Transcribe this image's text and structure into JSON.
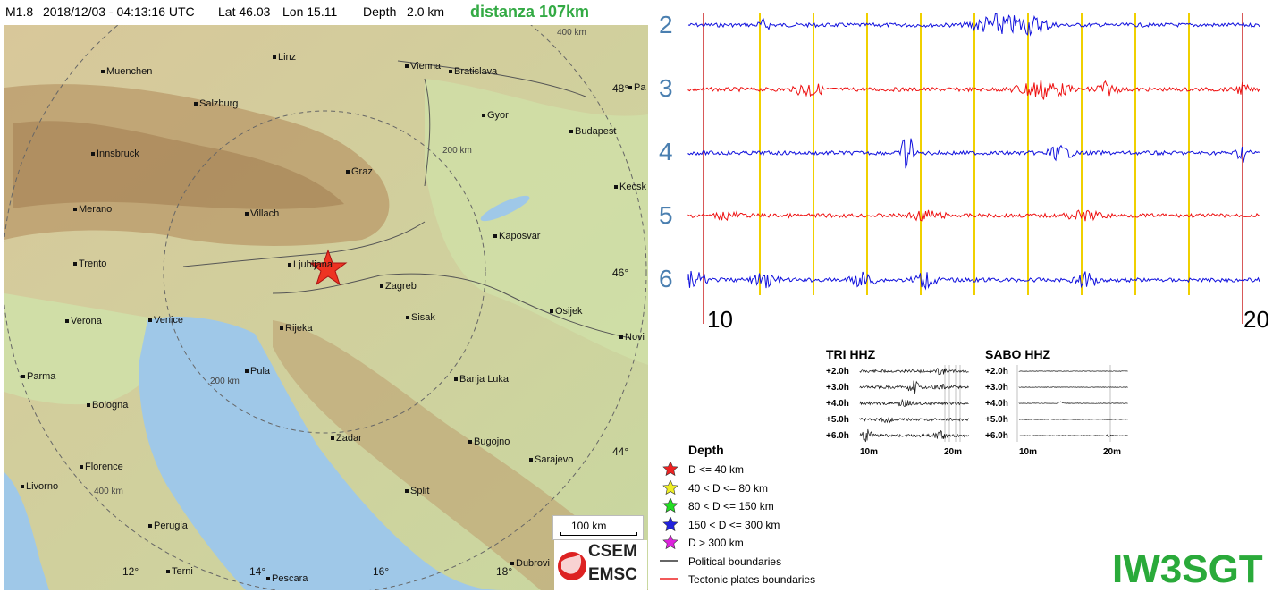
{
  "header": {
    "magnitude": "M1.8",
    "datetime": "2018/12/03 - 04:13:16 UTC",
    "lat": "Lat 46.03",
    "lon": "Lon  15.11",
    "depth": "Depth   2.0 km",
    "distance": "distanza 107km"
  },
  "map": {
    "cities": [
      {
        "name": "Linz"
      },
      {
        "name": "Vienna"
      },
      {
        "name": "Bratislava"
      },
      {
        "name": "Muenchen"
      },
      {
        "name": "Salzburg"
      },
      {
        "name": "Gyor"
      },
      {
        "name": "Budapest"
      },
      {
        "name": "Innsbruck"
      },
      {
        "name": "Graz"
      },
      {
        "name": "Kecsk"
      },
      {
        "name": "Merano"
      },
      {
        "name": "Villach"
      },
      {
        "name": "Kaposvar"
      },
      {
        "name": "Trento"
      },
      {
        "name": "Ljubljana"
      },
      {
        "name": "Zagreb"
      },
      {
        "name": "Verona"
      },
      {
        "name": "Venice"
      },
      {
        "name": "Sisak"
      },
      {
        "name": "Osijek"
      },
      {
        "name": "Rijeka"
      },
      {
        "name": "Novi"
      },
      {
        "name": "Pula"
      },
      {
        "name": "Parma"
      },
      {
        "name": "Banja Luka"
      },
      {
        "name": "Bologna"
      },
      {
        "name": "Zadar"
      },
      {
        "name": "Bugojno"
      },
      {
        "name": "Sarajevo"
      },
      {
        "name": "Florence"
      },
      {
        "name": "Livorno"
      },
      {
        "name": "Split"
      },
      {
        "name": "Perugia"
      },
      {
        "name": "Terni"
      },
      {
        "name": "Pescara"
      },
      {
        "name": "Dubrovi"
      },
      {
        "name": "Pa"
      }
    ],
    "lat_labels": [
      "48°",
      "46°",
      "44°"
    ],
    "lon_labels": [
      "12°",
      "14°",
      "16°",
      "18°"
    ],
    "dist_labels": [
      "400 km",
      "200 km",
      "200 km",
      "400 km"
    ],
    "scale_label": "100 km",
    "logo_top": "CSEM",
    "logo_bottom": "EMSC"
  },
  "seismogram": {
    "trace_labels": [
      "2",
      "3",
      "4",
      "5",
      "6"
    ],
    "trace_colors": [
      "#1010dd",
      "#ee1111",
      "#1010dd",
      "#ee1111",
      "#1010dd"
    ],
    "axis_start": "10",
    "axis_end": "20"
  },
  "legend": {
    "title": "Depth",
    "items": [
      {
        "label": "D <= 40 km",
        "color": "#ee2222",
        "icon": "star-icon"
      },
      {
        "label": "40 < D <= 80 km",
        "color": "#eeee22",
        "icon": "star-icon"
      },
      {
        "label": "80 < D <= 150 km",
        "color": "#22dd22",
        "icon": "star-icon"
      },
      {
        "label": "150 < D <= 300 km",
        "color": "#2222dd",
        "icon": "star-icon"
      },
      {
        "label": "D > 300 km",
        "color": "#dd22dd",
        "icon": "star-icon"
      },
      {
        "label": "Political boundaries",
        "color": "#333333",
        "icon": "line-icon"
      },
      {
        "label": "Tectonic plates boundaries",
        "color": "#ee2222",
        "icon": "line-icon"
      }
    ]
  },
  "mini_tri": {
    "title": "TRI HHZ",
    "rows": [
      "+2.0h",
      "+3.0h",
      "+4.0h",
      "+5.0h",
      "+6.0h"
    ],
    "ax_start": "10m",
    "ax_end": "20m"
  },
  "mini_sabo": {
    "title": "SABO HHZ",
    "rows": [
      "+2.0h",
      "+3.0h",
      "+4.0h",
      "+5.0h",
      "+6.0h"
    ],
    "ax_start": "10m",
    "ax_end": "20m"
  },
  "callsign": "IW3SGT"
}
